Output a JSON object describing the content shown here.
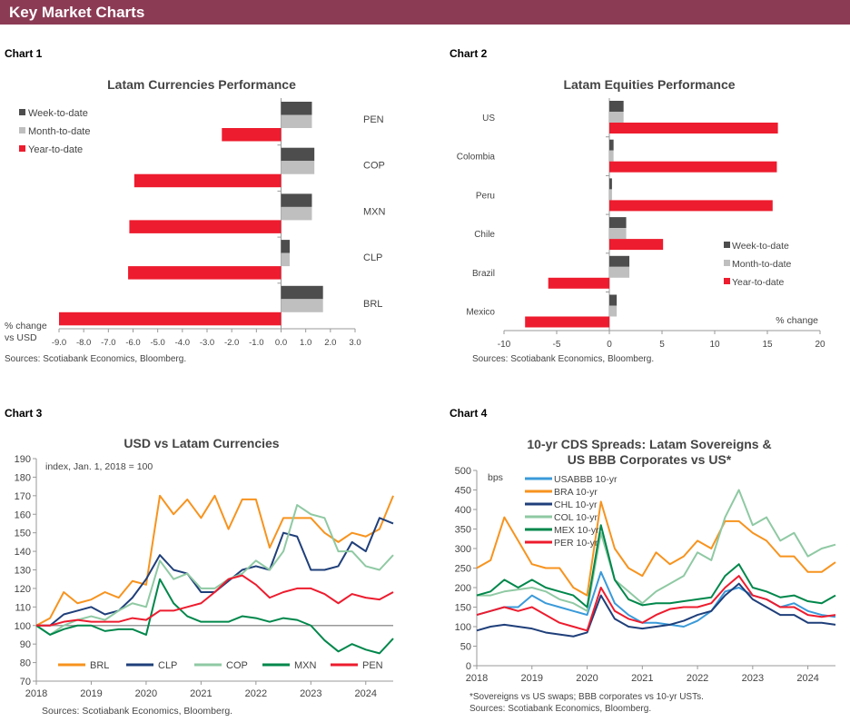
{
  "header": {
    "title": "Key Market Charts"
  },
  "chart_labels": [
    "Chart 1",
    "Chart 2",
    "Chart 3",
    "Chart 4"
  ],
  "colors": {
    "header": "#8c3b55",
    "week": "#4d4d4d",
    "month": "#bfbfbf",
    "ytd": "#ed1c2e",
    "BRL": "#f7931e",
    "CLP": "#1f3f7a",
    "COP": "#8fc9a3",
    "MXN": "#00874b",
    "PEN": "#ed1c2e",
    "USABBB": "#3a9ad9",
    "BRA": "#f7931e",
    "CHL": "#1f3f7a",
    "COL": "#8fc9a3",
    "MEX": "#00874b",
    "PER": "#ed1c2e"
  },
  "chart_data": [
    {
      "type": "bar",
      "orientation": "horizontal",
      "title": "Latam Currencies Performance",
      "xlabel": "% change vs USD",
      "xlim": [
        -9,
        3
      ],
      "xticks": [
        "-9.0",
        "-8.0",
        "-7.0",
        "-6.0",
        "-5.0",
        "-4.0",
        "-3.0",
        "-2.0",
        "-1.0",
        "0.0",
        "1.0",
        "2.0",
        "3.0"
      ],
      "categories": [
        "PEN",
        "COP",
        "MXN",
        "CLP",
        "BRL"
      ],
      "series": [
        {
          "name": "Week-to-date",
          "values": [
            1.25,
            1.35,
            1.25,
            0.35,
            1.7
          ]
        },
        {
          "name": "Month-to-date",
          "values": [
            1.25,
            1.35,
            1.25,
            0.35,
            1.7
          ]
        },
        {
          "name": "Year-to-date",
          "values": [
            -2.4,
            -5.95,
            -6.15,
            -6.2,
            -9.0
          ]
        }
      ],
      "legend": "top-left",
      "source": "Sources: Scotiabank Economics, Bloomberg."
    },
    {
      "type": "bar",
      "orientation": "horizontal",
      "title": "Latam Equities Performance",
      "xlabel": "% change",
      "xlim": [
        -10,
        20
      ],
      "xticks": [
        "-10",
        "-5",
        "0",
        "5",
        "10",
        "15",
        "20"
      ],
      "categories": [
        "US",
        "Colombia",
        "Peru",
        "Chile",
        "Brazil",
        "Mexico"
      ],
      "series": [
        {
          "name": "Week-to-date",
          "values": [
            1.35,
            0.4,
            0.25,
            1.6,
            1.9,
            0.7
          ]
        },
        {
          "name": "Month-to-date",
          "values": [
            1.35,
            0.4,
            0.25,
            1.6,
            1.9,
            0.7
          ]
        },
        {
          "name": "Year-to-date",
          "values": [
            16.0,
            15.9,
            15.5,
            5.1,
            -5.8,
            -8.0
          ]
        }
      ],
      "legend": "bottom-right",
      "source": "Sources: Scotiabank Economics, Bloomberg."
    },
    {
      "type": "line",
      "title": "USD vs Latam Currencies",
      "annotation": "index, Jan. 1, 2018 = 100",
      "ylim": [
        70,
        190
      ],
      "yticks": [
        "70",
        "80",
        "90",
        "100",
        "110",
        "120",
        "130",
        "140",
        "150",
        "160",
        "170",
        "180",
        "190"
      ],
      "xticks": [
        "2018",
        "2019",
        "2020",
        "2021",
        "2022",
        "2023",
        "2024"
      ],
      "reference_line": 100,
      "x": [
        "2018-01",
        "2018-04",
        "2018-07",
        "2018-10",
        "2019-01",
        "2019-04",
        "2019-07",
        "2019-10",
        "2020-01",
        "2020-04",
        "2020-07",
        "2020-10",
        "2021-01",
        "2021-04",
        "2021-07",
        "2021-10",
        "2022-01",
        "2022-04",
        "2022-07",
        "2022-10",
        "2023-01",
        "2023-04",
        "2023-07",
        "2023-10",
        "2024-01",
        "2024-04",
        "2024-07"
      ],
      "series": [
        {
          "name": "BRL",
          "values": [
            100,
            104,
            118,
            112,
            114,
            118,
            115,
            124,
            122,
            170,
            160,
            168,
            158,
            170,
            152,
            168,
            168,
            142,
            158,
            158,
            158,
            150,
            145,
            150,
            148,
            152,
            170
          ]
        },
        {
          "name": "CLP",
          "values": [
            100,
            100,
            106,
            108,
            110,
            106,
            108,
            115,
            125,
            138,
            130,
            128,
            118,
            118,
            124,
            130,
            132,
            130,
            150,
            148,
            130,
            130,
            132,
            145,
            140,
            158,
            155
          ]
        },
        {
          "name": "COP",
          "values": [
            100,
            95,
            100,
            103,
            105,
            103,
            108,
            112,
            110,
            135,
            125,
            128,
            120,
            120,
            125,
            128,
            135,
            130,
            140,
            165,
            160,
            158,
            140,
            140,
            132,
            130,
            138
          ]
        },
        {
          "name": "MXN",
          "values": [
            100,
            95,
            98,
            100,
            100,
            97,
            98,
            98,
            95,
            125,
            112,
            105,
            102,
            102,
            102,
            105,
            104,
            102,
            104,
            103,
            100,
            92,
            86,
            90,
            87,
            85,
            93
          ]
        },
        {
          "name": "PEN",
          "values": [
            100,
            100,
            102,
            103,
            102,
            102,
            102,
            104,
            103,
            108,
            108,
            110,
            112,
            118,
            125,
            127,
            122,
            115,
            118,
            120,
            120,
            117,
            112,
            117,
            115,
            114,
            118
          ]
        }
      ],
      "legend": "bottom",
      "source": "Sources: Scotiabank Economics, Bloomberg."
    },
    {
      "type": "line",
      "title": "10-yr CDS Spreads: Latam Sovereigns & US BBB Corporates vs US*",
      "ylabel": "bps",
      "ylim": [
        0,
        500
      ],
      "yticks": [
        "0",
        "50",
        "100",
        "150",
        "200",
        "250",
        "300",
        "350",
        "400",
        "450",
        "500"
      ],
      "xticks": [
        "2018",
        "2019",
        "2020",
        "2021",
        "2022",
        "2023",
        "2024"
      ],
      "x": [
        "2018-01",
        "2018-04",
        "2018-07",
        "2018-10",
        "2019-01",
        "2019-04",
        "2019-07",
        "2019-10",
        "2020-01",
        "2020-04",
        "2020-07",
        "2020-10",
        "2021-01",
        "2021-04",
        "2021-07",
        "2021-10",
        "2022-01",
        "2022-04",
        "2022-07",
        "2022-10",
        "2023-01",
        "2023-04",
        "2023-07",
        "2023-10",
        "2024-01",
        "2024-04",
        "2024-07"
      ],
      "series": [
        {
          "name": "USABBB 10-yr",
          "key": "USABBB",
          "values": [
            130,
            140,
            150,
            150,
            180,
            160,
            150,
            140,
            130,
            240,
            160,
            130,
            110,
            110,
            105,
            100,
            115,
            140,
            190,
            200,
            180,
            170,
            150,
            160,
            140,
            130,
            125
          ]
        },
        {
          "name": "BRA 10-yr",
          "key": "BRA",
          "values": [
            250,
            270,
            380,
            320,
            260,
            250,
            250,
            200,
            180,
            420,
            300,
            250,
            230,
            290,
            260,
            280,
            320,
            300,
            370,
            370,
            340,
            320,
            280,
            280,
            240,
            240,
            265
          ]
        },
        {
          "name": "CHL 10-yr",
          "key": "CHL",
          "values": [
            90,
            100,
            105,
            100,
            95,
            85,
            80,
            75,
            85,
            180,
            120,
            100,
            95,
            100,
            105,
            115,
            130,
            140,
            180,
            210,
            170,
            150,
            130,
            130,
            110,
            110,
            105
          ]
        },
        {
          "name": "COL 10-yr",
          "key": "COL",
          "values": [
            180,
            180,
            190,
            195,
            200,
            190,
            170,
            160,
            140,
            340,
            220,
            190,
            160,
            190,
            210,
            230,
            290,
            270,
            380,
            450,
            360,
            380,
            320,
            340,
            280,
            300,
            310
          ]
        },
        {
          "name": "MEX 10-yr",
          "key": "MEX",
          "values": [
            180,
            190,
            220,
            200,
            220,
            200,
            190,
            180,
            150,
            360,
            220,
            170,
            155,
            160,
            160,
            165,
            170,
            175,
            230,
            260,
            200,
            190,
            175,
            180,
            165,
            160,
            180
          ]
        },
        {
          "name": "PER 10-yr",
          "key": "PER",
          "values": [
            130,
            140,
            150,
            140,
            150,
            130,
            110,
            100,
            90,
            200,
            140,
            120,
            110,
            130,
            145,
            150,
            150,
            160,
            200,
            230,
            180,
            170,
            150,
            150,
            130,
            125,
            130
          ]
        }
      ],
      "legend": "top-left",
      "footnote": "*Sovereigns vs US swaps; BBB corporates vs 10-yr USTs.",
      "source": "Sources: Scotiabank Economics, Bloomberg."
    }
  ]
}
